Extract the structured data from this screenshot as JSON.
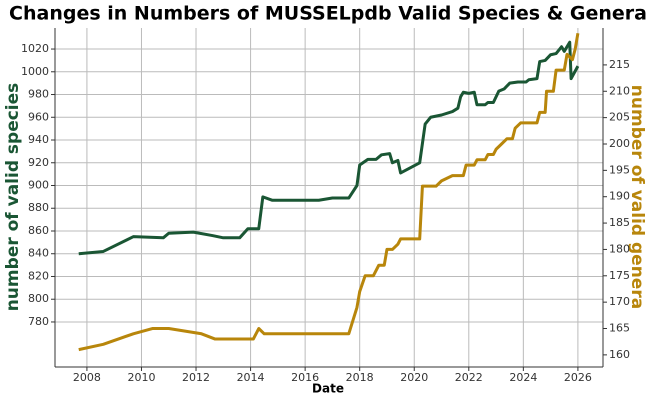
{
  "chart_data": {
    "type": "line",
    "title": "Changes in Numbers of MUSSELpdb Valid Species & Genera",
    "xlabel": "Date",
    "ylabel": "number of valid species",
    "y2label": "number of valid genera",
    "xlim": [
      2006.83,
      2026.92
    ],
    "xticks": [
      2008,
      2010,
      2012,
      2014,
      2016,
      2018,
      2020,
      2022,
      2024,
      2026
    ],
    "ylim": [
      740.4,
      1038.5
    ],
    "yticks": [
      780,
      800,
      820,
      840,
      860,
      880,
      900,
      920,
      940,
      960,
      980,
      1000,
      1020
    ],
    "y2lim": [
      157.7,
      222.0
    ],
    "y2ticks": [
      160,
      165,
      170,
      175,
      180,
      185,
      190,
      195,
      200,
      205,
      210,
      215
    ],
    "grid": true,
    "series": [
      {
        "color": "#1a5634",
        "axis": "y",
        "x": [
          2007.7,
          2008.6,
          2009.7,
          2010.8,
          2011,
          2011.9,
          2012.6,
          2013,
          2013.6,
          2013.9,
          2014.3,
          2014.45,
          2014.8,
          2016.5,
          2017,
          2017.6,
          2017.9,
          2018.0,
          2018.3,
          2018.6,
          2018.8,
          2019.1,
          2019.2,
          2019.4,
          2019.5,
          2020.2,
          2020.4,
          2020.6,
          2021,
          2021.4,
          2021.6,
          2021.7,
          2021.8,
          2022,
          2022.2,
          2022.3,
          2022.6,
          2022.7,
          2022.9,
          2023.1,
          2023.3,
          2023.5,
          2023.8,
          2024.1,
          2024.2,
          2024.5,
          2024.6,
          2024.8,
          2025,
          2025.2,
          2025.4,
          2025.5,
          2025.7,
          2025.75,
          2026
        ],
        "values": [
          840,
          842,
          855,
          854,
          858,
          859,
          856,
          854,
          854,
          862,
          862,
          890,
          887,
          887,
          889,
          889,
          900,
          918,
          923,
          923,
          927,
          928,
          920,
          922,
          911,
          920,
          954,
          960,
          962,
          965,
          968,
          978,
          982,
          981,
          982,
          971,
          971,
          973,
          973,
          983,
          985,
          990,
          991,
          991,
          993,
          994,
          1009,
          1010,
          1015,
          1016,
          1022,
          1018,
          1026,
          994,
          1005
        ]
      },
      {
        "color": "#b8860b",
        "axis": "y2",
        "x": [
          2007.7,
          2008.6,
          2009.7,
          2010.4,
          2011,
          2012.2,
          2012.7,
          2014.1,
          2014.3,
          2014.5,
          2017.6,
          2017.9,
          2018,
          2018.2,
          2018.5,
          2018.7,
          2018.9,
          2019,
          2019.2,
          2019.4,
          2019.5,
          2020.2,
          2020.3,
          2020.8,
          2021,
          2021.4,
          2021.8,
          2021.9,
          2022.2,
          2022.3,
          2022.6,
          2022.7,
          2022.9,
          2023,
          2023.2,
          2023.4,
          2023.6,
          2023.7,
          2023.9,
          2024.5,
          2024.6,
          2024.8,
          2024.85,
          2025.1,
          2025.2,
          2025.5,
          2025.6,
          2025.8,
          2025.9,
          2026
        ],
        "values": [
          161,
          162,
          164,
          165,
          165,
          164,
          163,
          163,
          165,
          164,
          164,
          169,
          172,
          175,
          175,
          177,
          177,
          180,
          180,
          181,
          182,
          182,
          192,
          192,
          193,
          194,
          194,
          196,
          196,
          197,
          197,
          198,
          198,
          199,
          200,
          201,
          201,
          203,
          204,
          204,
          206,
          206,
          210,
          210,
          214,
          214,
          217,
          216,
          218,
          221
        ]
      }
    ]
  }
}
